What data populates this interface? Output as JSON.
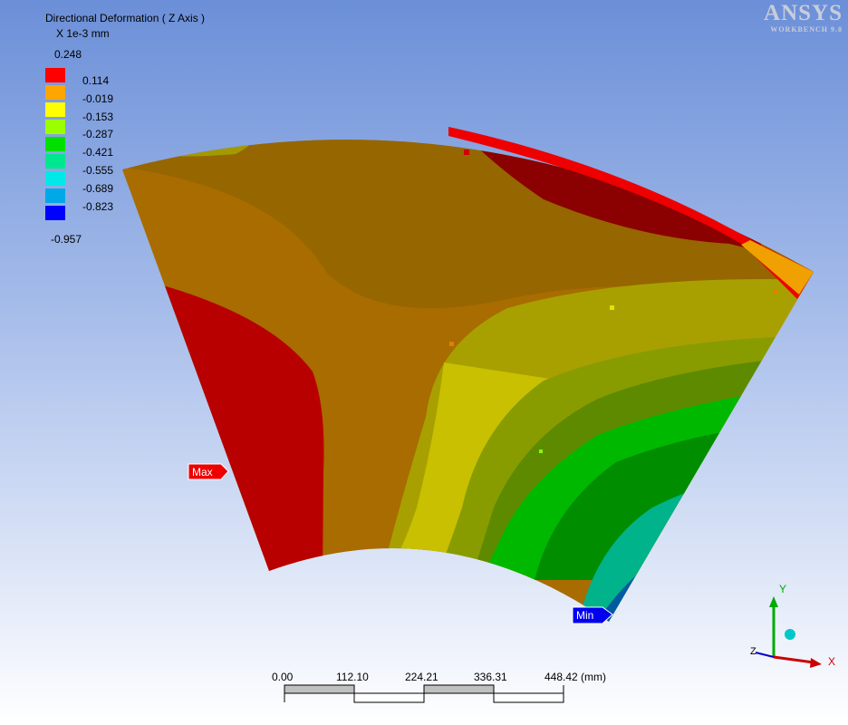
{
  "legend": {
    "title": "Directional Deformation ( Z Axis )",
    "unit": "X 1e-3 mm",
    "max_value": "0.248",
    "levels": [
      "0.114",
      "-0.019",
      "-0.153",
      "-0.287",
      "-0.421",
      "-0.555",
      "-0.689",
      "-0.823"
    ],
    "min_value": "-0.957",
    "colors": [
      "#ff0000",
      "#ffa500",
      "#ffff00",
      "#9cff00",
      "#00e000",
      "#00e88f",
      "#00e8e8",
      "#00a8e8",
      "#0000ff"
    ]
  },
  "logo": {
    "name": "ANSYS",
    "product": "WORKBENCH 9.0"
  },
  "markers": {
    "max_label": "Max",
    "min_label": "Min"
  },
  "scale_bar": {
    "ticks": [
      "0.00",
      "112.10",
      "224.21",
      "336.31",
      "448.42 (mm)"
    ]
  },
  "triad": {
    "x_label": "X",
    "y_label": "Y",
    "z_label": "Z"
  }
}
